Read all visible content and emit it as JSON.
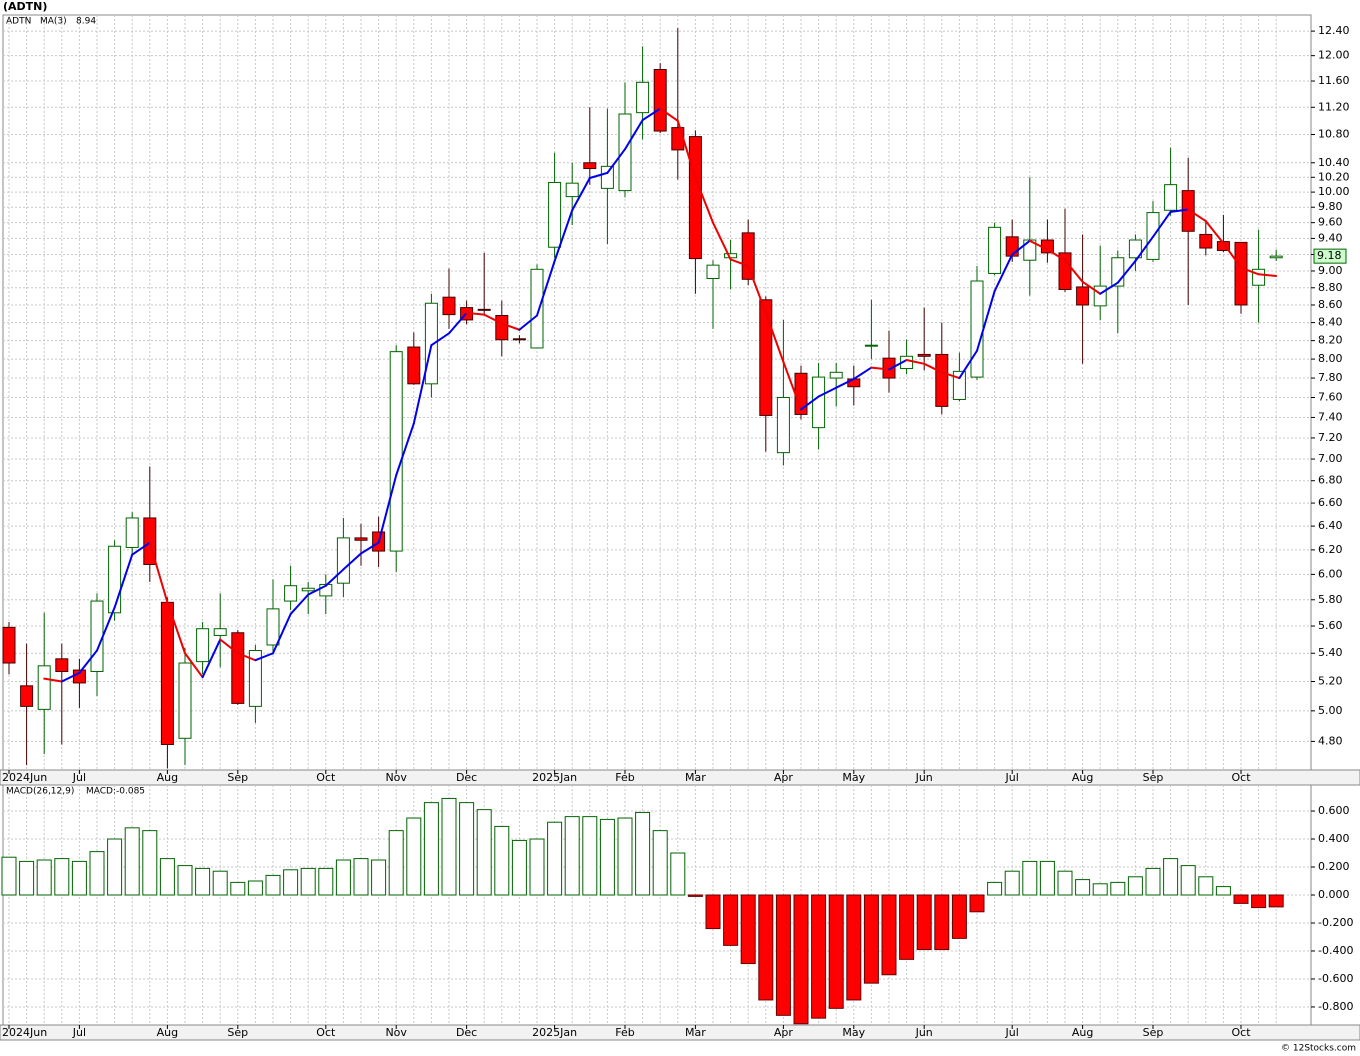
{
  "chart_data": [
    {
      "type": "candlestick",
      "title": "(ADTN)",
      "symbol": "ADTN",
      "ma_label": "MA(3)",
      "categories": [
        "2024Jun",
        null,
        null,
        null,
        "Jul",
        null,
        null,
        null,
        null,
        "Aug",
        null,
        null,
        null,
        "Sep",
        null,
        null,
        null,
        null,
        "Oct",
        null,
        null,
        null,
        "Nov",
        null,
        null,
        null,
        "Dec",
        null,
        null,
        null,
        null,
        "2025Jan",
        null,
        null,
        null,
        "Feb",
        null,
        null,
        null,
        "Mar",
        null,
        null,
        null,
        null,
        "Apr",
        null,
        null,
        null,
        "May",
        null,
        null,
        null,
        "Jun",
        null,
        null,
        null,
        null,
        "Jul",
        null,
        null,
        null,
        "Aug",
        null,
        null,
        null,
        "Sep",
        null,
        null,
        null,
        null,
        "Oct",
        null,
        null
      ],
      "open": [
        5.59,
        5.17,
        5.01,
        5.36,
        5.28,
        5.27,
        5.7,
        6.22,
        6.47,
        5.78,
        4.82,
        5.34,
        5.53,
        5.55,
        5.03,
        5.46,
        5.79,
        5.87,
        5.83,
        5.93,
        6.3,
        6.35,
        6.19,
        8.13,
        7.74,
        8.69,
        8.57,
        8.55,
        8.48,
        8.22,
        8.12,
        9.29,
        9.94,
        10.4,
        10.05,
        10.02,
        11.12,
        11.78,
        10.9,
        10.77,
        8.91,
        9.16,
        9.47,
        8.66,
        7.06,
        7.85,
        7.3,
        7.8,
        7.79,
        8.14,
        8.01,
        7.9,
        8.05,
        8.05,
        7.58,
        7.81,
        8.97,
        9.42,
        9.13,
        9.38,
        9.22,
        8.81,
        8.59,
        8.82,
        9.16,
        9.14,
        9.76,
        10.02,
        9.45,
        9.36,
        9.35,
        8.83,
        9.16
      ],
      "high": [
        5.63,
        5.47,
        5.7,
        5.47,
        5.36,
        5.85,
        6.28,
        6.52,
        6.93,
        5.82,
        5.44,
        5.63,
        5.85,
        5.57,
        5.46,
        5.96,
        6.07,
        5.94,
        6.0,
        6.47,
        6.42,
        6.48,
        8.15,
        8.29,
        8.73,
        9.03,
        8.65,
        9.22,
        8.65,
        8.26,
        9.08,
        10.54,
        10.4,
        11.2,
        11.18,
        11.58,
        12.15,
        11.88,
        12.45,
        10.86,
        9.13,
        9.38,
        9.64,
        8.7,
        8.43,
        7.93,
        7.96,
        7.96,
        7.93,
        8.66,
        8.31,
        8.21,
        8.57,
        8.4,
        8.07,
        9.06,
        9.6,
        9.64,
        10.2,
        9.64,
        9.78,
        9.45,
        9.31,
        9.25,
        9.45,
        9.88,
        10.61,
        10.47,
        9.62,
        9.7,
        9.35,
        9.51,
        9.26
      ],
      "low": [
        5.25,
        4.65,
        4.72,
        4.78,
        5.02,
        5.1,
        5.64,
        6.16,
        5.94,
        4.63,
        4.65,
        5.25,
        5.3,
        5.04,
        4.92,
        5.39,
        5.72,
        5.69,
        5.69,
        5.82,
        6.07,
        6.06,
        6.02,
        7.73,
        7.6,
        8.33,
        8.38,
        8.49,
        8.03,
        8.17,
        8.12,
        9.16,
        9.57,
        10.1,
        9.33,
        9.93,
        10.73,
        10.82,
        10.17,
        8.73,
        8.33,
        8.78,
        8.83,
        7.07,
        6.94,
        7.38,
        7.09,
        7.51,
        7.52,
        8.0,
        7.65,
        7.84,
        7.88,
        7.43,
        7.56,
        7.78,
        8.95,
        9.11,
        8.71,
        9.1,
        8.75,
        7.95,
        8.43,
        8.28,
        9.0,
        9.11,
        9.69,
        8.6,
        9.19,
        9.23,
        8.5,
        8.4,
        9.12
      ],
      "close": [
        5.33,
        5.03,
        5.31,
        5.27,
        5.19,
        5.79,
        6.23,
        6.47,
        6.08,
        4.78,
        5.33,
        5.58,
        5.58,
        5.05,
        5.42,
        5.73,
        5.91,
        5.89,
        5.92,
        6.3,
        6.28,
        6.19,
        8.08,
        7.74,
        8.62,
        8.49,
        8.43,
        8.54,
        8.21,
        8.21,
        9.02,
        10.13,
        10.12,
        10.32,
        10.35,
        11.1,
        11.58,
        10.85,
        10.58,
        9.15,
        9.07,
        9.21,
        8.9,
        7.42,
        7.6,
        7.43,
        7.81,
        7.86,
        7.71,
        8.15,
        7.8,
        8.03,
        8.03,
        7.51,
        7.87,
        8.88,
        9.54,
        9.18,
        9.38,
        9.22,
        8.78,
        8.6,
        8.82,
        9.16,
        9.38,
        9.73,
        10.1,
        9.49,
        9.28,
        9.25,
        8.6,
        9.02,
        9.18
      ],
      "ma": [
        null,
        null,
        5.22,
        5.2,
        5.26,
        5.42,
        5.74,
        6.16,
        6.26,
        5.78,
        5.4,
        5.23,
        5.5,
        5.4,
        5.35,
        5.4,
        5.69,
        5.84,
        5.91,
        6.04,
        6.17,
        6.26,
        6.85,
        7.34,
        8.15,
        8.28,
        8.51,
        8.49,
        8.39,
        8.32,
        8.48,
        9.12,
        9.76,
        10.19,
        10.26,
        10.59,
        11.01,
        11.18,
        11.0,
        10.19,
        9.6,
        9.14,
        9.06,
        8.51,
        7.97,
        7.48,
        7.61,
        7.7,
        7.79,
        7.91,
        7.89,
        7.99,
        7.95,
        7.86,
        7.8,
        8.09,
        8.76,
        9.2,
        9.37,
        9.26,
        9.13,
        8.87,
        8.73,
        8.86,
        9.12,
        9.42,
        9.74,
        9.77,
        9.62,
        9.34,
        9.04,
        8.96,
        8.94
      ],
      "up_color": "#006400",
      "down_color": "#ff0000",
      "ma_up_color": "#0000ee",
      "ma_down_color": "#ee0000",
      "log_scale": true,
      "grid": true,
      "ylim": [
        4.62,
        12.67
      ],
      "yticks": [
        {
          "value": 4.8,
          "label": "4.80"
        },
        {
          "value": 5,
          "label": "5.00"
        },
        {
          "value": 5.2,
          "label": "5.20"
        },
        {
          "value": 5.4,
          "label": "5.40"
        },
        {
          "value": 5.6,
          "label": "5.60"
        },
        {
          "value": 5.8,
          "label": "5.80"
        },
        {
          "value": 6,
          "label": "6.00"
        },
        {
          "value": 6.2,
          "label": "6.20"
        },
        {
          "value": 6.4,
          "label": "6.40"
        },
        {
          "value": 6.6,
          "label": "6.60"
        },
        {
          "value": 6.8,
          "label": "6.80"
        },
        {
          "value": 7,
          "label": "7.00"
        },
        {
          "value": 7.2,
          "label": "7.20"
        },
        {
          "value": 7.4,
          "label": "7.40"
        },
        {
          "value": 7.6,
          "label": "7.60"
        },
        {
          "value": 7.8,
          "label": "7.80"
        },
        {
          "value": 8,
          "label": "8.00"
        },
        {
          "value": 8.2,
          "label": "8.20"
        },
        {
          "value": 8.4,
          "label": "8.40"
        },
        {
          "value": 8.6,
          "label": "8.60"
        },
        {
          "value": 8.8,
          "label": "8.80"
        },
        {
          "value": 9,
          "label": "9.00"
        },
        {
          "value": 9.2,
          "label": "9.20"
        },
        {
          "value": 9.4,
          "label": "9.40"
        },
        {
          "value": 9.6,
          "label": "9.60"
        },
        {
          "value": 9.8,
          "label": "9.80"
        },
        {
          "value": 10,
          "label": "10.00"
        },
        {
          "value": 10.2,
          "label": "10.20"
        },
        {
          "value": 10.4,
          "label": "10.40"
        },
        {
          "value": 10.8,
          "label": "10.80"
        },
        {
          "value": 11.2,
          "label": "11.20"
        },
        {
          "value": 11.6,
          "label": "11.60"
        },
        {
          "value": 12,
          "label": "12.00"
        },
        {
          "value": 12.4,
          "label": "12.40"
        }
      ]
    },
    {
      "type": "bar",
      "title": "MACD(26,12,9)",
      "readout": "MACD:-0.085",
      "categories": [
        "2024Jun",
        null,
        null,
        null,
        "Jul",
        null,
        null,
        null,
        null,
        "Aug",
        null,
        null,
        null,
        "Sep",
        null,
        null,
        null,
        null,
        "Oct",
        null,
        null,
        null,
        "Nov",
        null,
        null,
        null,
        "Dec",
        null,
        null,
        null,
        null,
        "2025Jan",
        null,
        null,
        null,
        "Feb",
        null,
        null,
        null,
        "Mar",
        null,
        null,
        null,
        null,
        "Apr",
        null,
        null,
        null,
        "May",
        null,
        null,
        null,
        "Jun",
        null,
        null,
        null,
        null,
        "Jul",
        null,
        null,
        null,
        "Aug",
        null,
        null,
        null,
        "Sep",
        null,
        null,
        null,
        null,
        "Oct",
        null,
        null
      ],
      "values": [
        0.27,
        0.24,
        0.25,
        0.26,
        0.24,
        0.31,
        0.4,
        0.48,
        0.46,
        0.26,
        0.21,
        0.19,
        0.17,
        0.09,
        0.1,
        0.14,
        0.18,
        0.19,
        0.19,
        0.25,
        0.26,
        0.25,
        0.46,
        0.55,
        0.66,
        0.69,
        0.66,
        0.61,
        0.49,
        0.39,
        0.4,
        0.52,
        0.56,
        0.56,
        0.54,
        0.55,
        0.59,
        0.46,
        0.3,
        -0.01,
        -0.24,
        -0.36,
        -0.49,
        -0.75,
        -0.86,
        -0.92,
        -0.88,
        -0.81,
        -0.75,
        -0.63,
        -0.57,
        -0.46,
        -0.39,
        -0.39,
        -0.31,
        -0.12,
        0.09,
        0.17,
        0.24,
        0.24,
        0.17,
        0.11,
        0.08,
        0.09,
        0.13,
        0.19,
        0.26,
        0.21,
        0.13,
        0.06,
        -0.06,
        -0.09,
        -0.085
      ],
      "positive_color": "#006400",
      "negative_color": "#ff0000",
      "grid": true,
      "ylim": [
        -0.929,
        0.786
      ],
      "yticks": [
        {
          "value": -0.8,
          "label": "-0.800"
        },
        {
          "value": -0.6,
          "label": "-0.600"
        },
        {
          "value": -0.4,
          "label": "-0.400"
        },
        {
          "value": -0.2,
          "label": "-0.200"
        },
        {
          "value": 0,
          "label": "0.000"
        },
        {
          "value": 0.2,
          "label": "0.200"
        },
        {
          "value": 0.4,
          "label": "0.400"
        },
        {
          "value": 0.6,
          "label": "0.600"
        }
      ]
    }
  ],
  "footer": "© 12Stocks.com"
}
